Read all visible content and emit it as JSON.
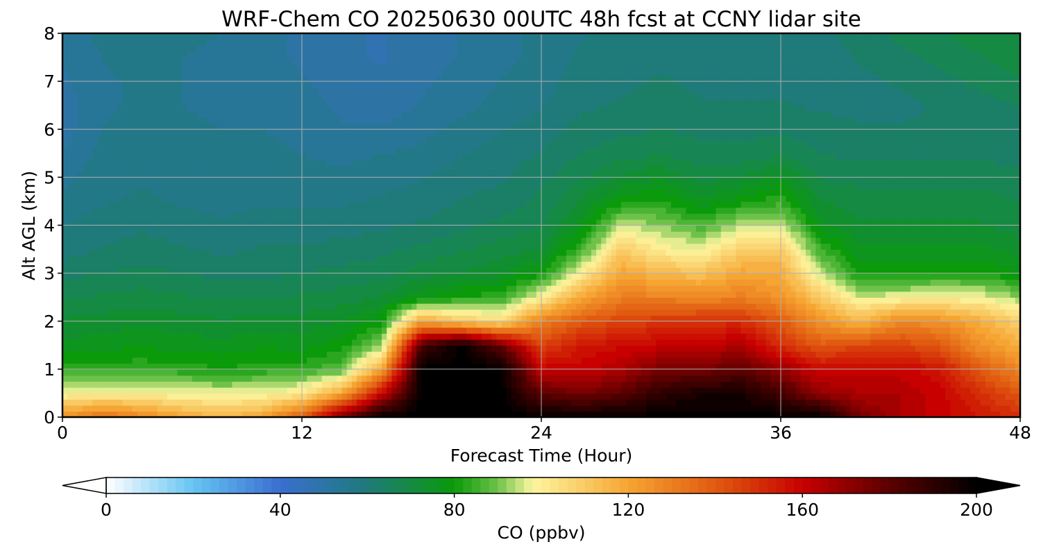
{
  "chart_data": {
    "type": "heatmap",
    "title": "WRF-Chem CO  20250630 00UTC 48h fcst at CCNY lidar site",
    "xlabel": "Forecast Time (Hour)",
    "ylabel": "Alt AGL (km)",
    "xlim": [
      0,
      48
    ],
    "ylim": [
      0,
      8
    ],
    "xticks": [
      0,
      12,
      24,
      36,
      48
    ],
    "yticks": [
      0,
      1,
      2,
      3,
      4,
      5,
      6,
      7,
      8
    ],
    "grid": true,
    "x": [
      0,
      2,
      4,
      6,
      8,
      10,
      12,
      14,
      16,
      18,
      20,
      22,
      24,
      26,
      28,
      30,
      32,
      34,
      36,
      38,
      40,
      42,
      44,
      46,
      48
    ],
    "y": [
      0,
      0.5,
      1,
      1.5,
      2,
      2.5,
      3,
      3.5,
      4,
      4.5,
      5,
      5.5,
      6,
      6.5,
      7,
      7.5,
      8
    ],
    "z": [
      [
        125,
        135,
        128,
        120,
        115,
        120,
        140,
        175,
        200,
        200,
        200,
        200,
        200,
        200,
        200,
        200,
        200,
        200,
        200,
        200,
        175,
        165,
        160,
        155,
        150
      ],
      [
        98,
        100,
        100,
        98,
        97,
        98,
        102,
        120,
        160,
        200,
        200,
        200,
        180,
        175,
        180,
        190,
        195,
        195,
        185,
        170,
        165,
        165,
        160,
        150,
        140
      ],
      [
        85,
        84,
        84,
        83,
        82,
        83,
        84,
        88,
        120,
        200,
        200,
        200,
        160,
        160,
        165,
        175,
        175,
        180,
        170,
        158,
        160,
        160,
        155,
        140,
        128
      ],
      [
        76,
        77,
        78,
        77,
        76,
        78,
        77,
        80,
        92,
        185,
        200,
        178,
        145,
        155,
        158,
        160,
        160,
        165,
        150,
        140,
        145,
        145,
        140,
        125,
        118
      ],
      [
        72,
        73,
        74,
        73,
        72,
        73,
        73,
        75,
        80,
        120,
        110,
        105,
        130,
        140,
        145,
        148,
        150,
        150,
        140,
        125,
        115,
        128,
        125,
        118,
        108
      ],
      [
        68,
        69,
        70,
        69,
        68,
        68,
        69,
        70,
        72,
        78,
        82,
        84,
        100,
        120,
        130,
        130,
        128,
        130,
        125,
        110,
        96,
        98,
        100,
        98,
        92
      ],
      [
        64,
        65,
        66,
        65,
        64,
        64,
        65,
        66,
        67,
        70,
        72,
        74,
        80,
        100,
        120,
        115,
        112,
        120,
        118,
        95,
        80,
        80,
        82,
        82,
        78
      ],
      [
        60,
        62,
        63,
        62,
        61,
        62,
        62,
        63,
        64,
        66,
        68,
        70,
        72,
        85,
        110,
        100,
        98,
        108,
        110,
        85,
        76,
        76,
        76,
        76,
        74
      ],
      [
        58,
        60,
        61,
        60,
        59,
        60,
        60,
        60,
        61,
        62,
        64,
        66,
        68,
        76,
        95,
        92,
        86,
        95,
        96,
        76,
        72,
        72,
        72,
        72,
        70
      ],
      [
        56,
        58,
        59,
        58,
        57,
        58,
        58,
        58,
        59,
        60,
        62,
        63,
        66,
        72,
        80,
        82,
        76,
        80,
        84,
        72,
        70,
        70,
        70,
        70,
        68
      ],
      [
        54,
        57,
        58,
        57,
        56,
        57,
        56,
        56,
        57,
        58,
        60,
        61,
        64,
        68,
        72,
        75,
        70,
        72,
        76,
        68,
        67,
        67,
        67,
        67,
        66
      ],
      [
        52,
        56,
        58,
        57,
        56,
        56,
        55,
        54,
        55,
        56,
        58,
        60,
        62,
        65,
        67,
        68,
        66,
        66,
        68,
        65,
        64,
        64,
        64,
        64,
        64
      ],
      [
        50,
        55,
        57,
        56,
        55,
        55,
        54,
        52,
        52,
        54,
        56,
        58,
        60,
        63,
        64,
        65,
        64,
        64,
        64,
        63,
        62,
        62,
        62,
        63,
        64
      ],
      [
        50,
        54,
        56,
        55,
        54,
        54,
        53,
        51,
        50,
        52,
        54,
        56,
        58,
        61,
        62,
        63,
        62,
        62,
        62,
        61,
        61,
        61,
        62,
        63,
        65
      ],
      [
        51,
        54,
        56,
        55,
        54,
        53,
        52,
        50,
        49,
        51,
        53,
        55,
        57,
        60,
        61,
        62,
        61,
        61,
        61,
        60,
        61,
        62,
        64,
        66,
        68
      ],
      [
        52,
        55,
        57,
        55,
        54,
        53,
        51,
        49,
        48,
        50,
        52,
        54,
        56,
        59,
        60,
        61,
        60,
        60,
        60,
        60,
        62,
        64,
        66,
        68,
        70
      ],
      [
        53,
        56,
        58,
        56,
        55,
        53,
        51,
        49,
        48,
        50,
        52,
        54,
        56,
        58,
        60,
        61,
        60,
        60,
        60,
        61,
        63,
        66,
        68,
        70,
        72
      ]
    ],
    "colorbar": {
      "label": "CO  (ppbv)",
      "ticks": [
        0,
        40,
        80,
        120,
        160,
        200
      ],
      "min": 0,
      "max": 200,
      "extend": "both",
      "colormap": [
        [
          0,
          "#ffffff"
        ],
        [
          20,
          "#66c4f2"
        ],
        [
          40,
          "#3a6ed0"
        ],
        [
          60,
          "#1f7a7a"
        ],
        [
          80,
          "#0a9a0a"
        ],
        [
          90,
          "#6ec24a"
        ],
        [
          98,
          "#fdf6a0"
        ],
        [
          120,
          "#f6a532"
        ],
        [
          140,
          "#e05a10"
        ],
        [
          160,
          "#c80000"
        ],
        [
          180,
          "#5a0000"
        ],
        [
          200,
          "#000000"
        ]
      ]
    }
  }
}
